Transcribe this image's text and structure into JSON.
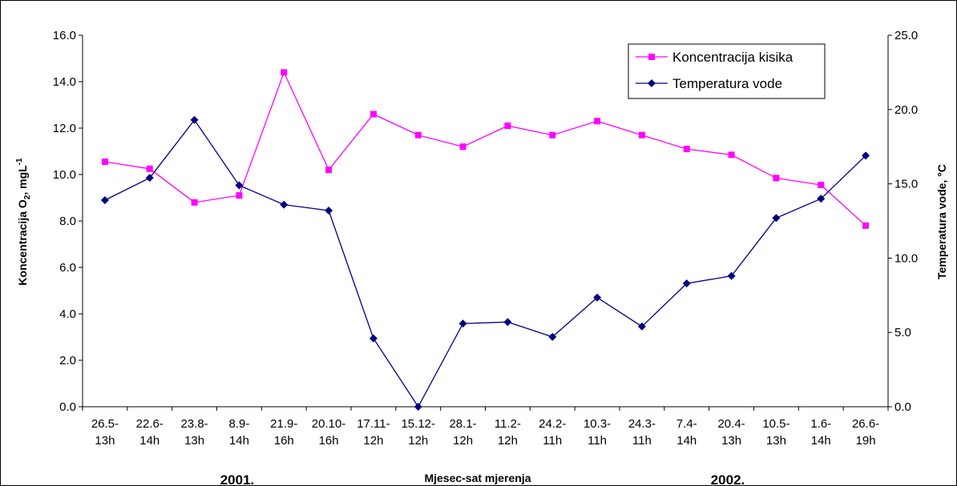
{
  "chart_data": {
    "type": "line",
    "xlabel": "Mjesec-sat mjerenja",
    "ylabel_left": "Koncentracija O",
    "ylabel_left_sub": "2",
    "ylabel_left_unit": ", mgL",
    "ylabel_left_sup": "-1",
    "ylabel_right": "Temperatura vode, °C",
    "year_labels": [
      "2001.",
      "2002."
    ],
    "categories": [
      [
        "26.5-",
        "13h"
      ],
      [
        "22.6-",
        "14h"
      ],
      [
        "23.8-",
        "13h"
      ],
      [
        "8.9-",
        "14h"
      ],
      [
        "21.9-",
        "16h"
      ],
      [
        "20.10-",
        "16h"
      ],
      [
        "17.11-",
        "12h"
      ],
      [
        "15.12-",
        "12h"
      ],
      [
        "28.1-",
        "12h"
      ],
      [
        "11.2-",
        "12h"
      ],
      [
        "24.2-",
        "11h"
      ],
      [
        "10.3-",
        "11h"
      ],
      [
        "24.3-",
        "11h"
      ],
      [
        "7.4-",
        "14h"
      ],
      [
        "20.4-",
        "13h"
      ],
      [
        "10.5-",
        "13h"
      ],
      [
        "1.6-",
        "14h"
      ],
      [
        "26.6-",
        "19h"
      ]
    ],
    "y_left_ticks": [
      "0.0",
      "2.0",
      "4.0",
      "6.0",
      "8.0",
      "10.0",
      "12.0",
      "14.0",
      "16.0"
    ],
    "y_right_ticks": [
      "0.0",
      "5.0",
      "10.0",
      "15.0",
      "20.0",
      "25.0"
    ],
    "ylim_left": [
      0,
      16
    ],
    "ylim_right": [
      0,
      25
    ],
    "legend_position": "top-right",
    "grid": false,
    "series": [
      {
        "name": "Koncentracija kisika",
        "axis": "left",
        "color": "#ff00ff",
        "marker": "square",
        "values": [
          10.55,
          10.25,
          8.8,
          9.1,
          14.4,
          10.2,
          12.6,
          11.7,
          11.2,
          12.1,
          11.7,
          12.3,
          11.7,
          11.1,
          10.85,
          9.85,
          9.55,
          7.8
        ]
      },
      {
        "name": "Temperatura vode",
        "axis": "right",
        "color": "#000080",
        "marker": "diamond",
        "values": [
          13.9,
          15.4,
          19.3,
          14.9,
          13.6,
          13.2,
          4.6,
          0.0,
          5.6,
          5.7,
          4.7,
          7.35,
          5.4,
          8.3,
          8.8,
          12.7,
          14.0,
          16.9
        ]
      }
    ]
  }
}
